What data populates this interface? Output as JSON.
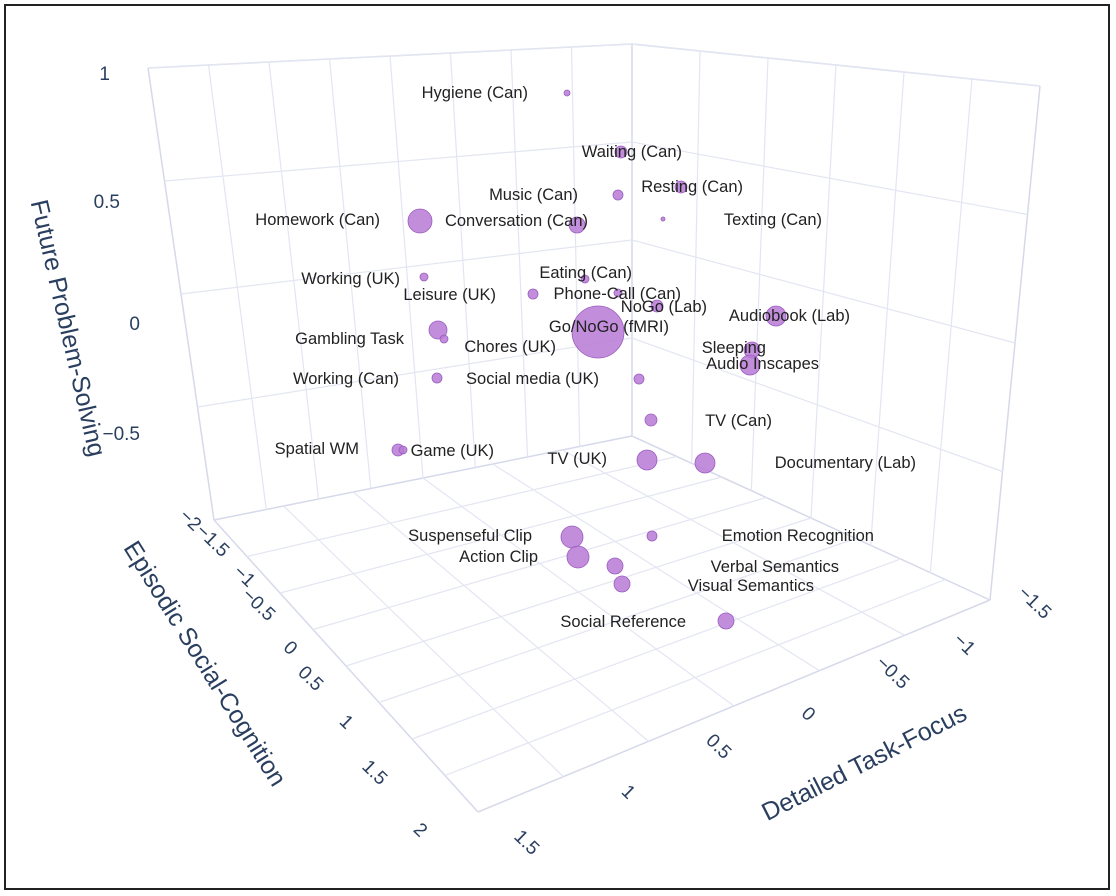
{
  "chart_data": {
    "type": "scatter",
    "projection": "3d",
    "xlabel": "Detailed Task-Focus",
    "ylabel": "Episodic Social-Cognition",
    "zlabel": "Future Problem-Solving",
    "x_ticks": [
      "−1.5",
      "−1",
      "−0.5",
      "0",
      "0.5",
      "1",
      "1.5"
    ],
    "y_ticks": [
      "−2",
      "−1.5",
      "−1",
      "−0.5",
      "0",
      "0.5",
      "1",
      "1.5",
      "2"
    ],
    "z_ticks": [
      "1",
      "0.5",
      "0",
      "−0.5"
    ],
    "xlim": [
      1.5,
      -1.5
    ],
    "ylim": [
      -2,
      2
    ],
    "zlim": [
      -1,
      1
    ],
    "marker_color": "#b77ad6",
    "points": [
      {
        "label": "Hygiene (Can)"
      },
      {
        "label": "Waiting (Can)"
      },
      {
        "label": "Music (Can)"
      },
      {
        "label": "Resting (Can)"
      },
      {
        "label": "Homework (Can)"
      },
      {
        "label": "Conversation (Can)"
      },
      {
        "label": "Texting (Can)"
      },
      {
        "label": "Working (UK)"
      },
      {
        "label": "Eating (Can)"
      },
      {
        "label": "Leisure (UK)"
      },
      {
        "label": "Phone-Call (Can)"
      },
      {
        "label": "NoGo (Lab)"
      },
      {
        "label": "Audiobook (Lab)"
      },
      {
        "label": "Gambling Task"
      },
      {
        "label": "Go/NoGo (fMRI)"
      },
      {
        "label": "Chores (UK)"
      },
      {
        "label": "Sleeping"
      },
      {
        "label": "Audio Inscapes"
      },
      {
        "label": "Working (Can)"
      },
      {
        "label": "Social media (UK)"
      },
      {
        "label": "TV (Can)"
      },
      {
        "label": "Spatial WM"
      },
      {
        "label": "Game (UK)"
      },
      {
        "label": "TV (UK)"
      },
      {
        "label": "Documentary (Lab)"
      },
      {
        "label": "Suspenseful Clip"
      },
      {
        "label": "Emotion Recognition"
      },
      {
        "label": "Action Clip"
      },
      {
        "label": "Verbal Semantics"
      },
      {
        "label": "Visual Semantics"
      },
      {
        "label": "Social Reference"
      }
    ]
  }
}
